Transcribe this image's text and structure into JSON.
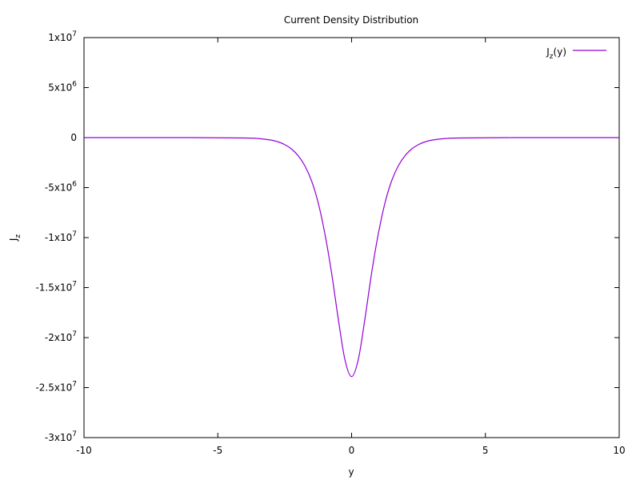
{
  "chart_data": {
    "type": "line",
    "title": "Current Density Distribution",
    "xlabel": "y",
    "ylabel": {
      "base": "J",
      "sub": "z"
    },
    "xlim": [
      -10,
      10
    ],
    "ylim": [
      -30000000,
      10000000
    ],
    "grid": false,
    "legend_position": "top-right",
    "x_ticks": [
      {
        "value": -10,
        "label": "-10"
      },
      {
        "value": -5,
        "label": "-5"
      },
      {
        "value": 0,
        "label": "0"
      },
      {
        "value": 5,
        "label": "5"
      },
      {
        "value": 10,
        "label": "10"
      }
    ],
    "y_ticks": [
      {
        "value": 10000000,
        "mant": "1x10",
        "exp": "7"
      },
      {
        "value": 5000000,
        "mant": "5x10",
        "exp": "6"
      },
      {
        "value": 0,
        "mant": "0",
        "exp": ""
      },
      {
        "value": -5000000,
        "mant": "-5x10",
        "exp": "6"
      },
      {
        "value": -10000000,
        "mant": "-1x10",
        "exp": "7"
      },
      {
        "value": -15000000,
        "mant": "-1.5x10",
        "exp": "7"
      },
      {
        "value": -20000000,
        "mant": "-2x10",
        "exp": "7"
      },
      {
        "value": -25000000,
        "mant": "-2.5x10",
        "exp": "7"
      },
      {
        "value": -30000000,
        "mant": "-3x10",
        "exp": "7"
      }
    ],
    "series": [
      {
        "name": {
          "base": "J",
          "sub": "z",
          "suffix": "(y)"
        },
        "color": "#9400d3",
        "x": [
          -10,
          -6,
          -4,
          -3.5,
          -3,
          -2.75,
          -2.5,
          -2.25,
          -2,
          -1.75,
          -1.5,
          -1.25,
          -1,
          -0.75,
          -0.5,
          -0.25,
          0,
          0.25,
          0.5,
          0.75,
          1,
          1.25,
          1.5,
          1.75,
          2,
          2.25,
          2.5,
          2.75,
          3,
          3.5,
          4,
          6,
          10
        ],
        "y": [
          0,
          0,
          -40000,
          -90000,
          -250000,
          -420000,
          -700000,
          -1130000,
          -1800000,
          -2800000,
          -4300000,
          -6500000,
          -9600000,
          -13500000,
          -18100000,
          -22200000,
          -23900000,
          -22200000,
          -18100000,
          -13500000,
          -9600000,
          -6500000,
          -4300000,
          -2800000,
          -1800000,
          -1130000,
          -700000,
          -420000,
          -250000,
          -90000,
          -40000,
          0,
          0
        ]
      }
    ]
  }
}
